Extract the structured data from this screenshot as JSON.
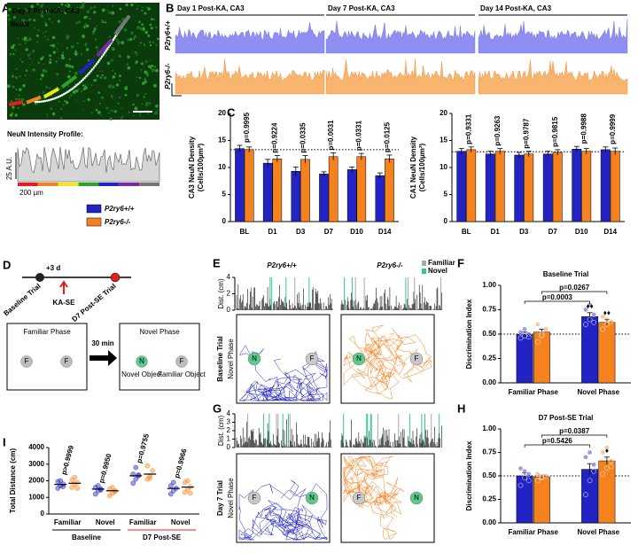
{
  "chart_data": [
    {
      "type": "bar",
      "ylabel": [
        "CA3 NeuN Density",
        "(Cells/100µm²)"
      ],
      "categories": [
        "BL",
        "D1",
        "D3",
        "D7",
        "D10",
        "D14"
      ],
      "category_colors": [
        "#000000",
        "#e0201f",
        "#e0201f",
        "#e0201f",
        "#e0201f",
        "#e0201f"
      ],
      "series": [
        {
          "name": "P2ry6+/+",
          "color": "#2323c4",
          "values": [
            13.5,
            10.8,
            9.3,
            8.8,
            9.6,
            8.5
          ],
          "errors": [
            0.6,
            0.7,
            0.8,
            0.4,
            0.5,
            0.5
          ]
        },
        {
          "name": "P2ry6-/-",
          "color": "#f5821f",
          "values": [
            13.3,
            11.6,
            11.5,
            12.0,
            12.0,
            11.6
          ],
          "errors": [
            0.5,
            0.6,
            0.7,
            0.7,
            0.6,
            0.7
          ]
        }
      ],
      "ylim": [
        0,
        20
      ],
      "yticks": [
        0,
        5,
        10,
        15,
        20
      ],
      "reference_line": 13.3,
      "p_values": [
        "p=0.9995",
        "p=0.9224",
        "p=0.0335",
        "p=0.0031",
        "p=0.0331",
        "p=0.0125"
      ]
    },
    {
      "type": "bar",
      "ylabel": [
        "CA1 NeuN Density",
        "(Cells/100µm²)"
      ],
      "categories": [
        "BL",
        "D1",
        "D3",
        "D7",
        "D10",
        "D14"
      ],
      "category_colors": [
        "#000000",
        "#e0201f",
        "#e0201f",
        "#e0201f",
        "#e0201f",
        "#e0201f"
      ],
      "series": [
        {
          "name": "P2ry6+/+",
          "color": "#2323c4",
          "values": [
            13.0,
            12.5,
            12.3,
            12.5,
            13.4,
            13.3
          ],
          "errors": [
            0.5,
            0.5,
            0.5,
            0.5,
            0.5,
            0.5
          ]
        },
        {
          "name": "P2ry6-/-",
          "color": "#f5821f",
          "values": [
            13.3,
            13.0,
            12.5,
            12.8,
            13.0,
            13.0
          ],
          "errors": [
            0.5,
            0.5,
            0.5,
            0.5,
            0.5,
            0.6
          ]
        }
      ],
      "ylim": [
        0,
        20
      ],
      "yticks": [
        0,
        5,
        10,
        15,
        20
      ],
      "reference_line": 12.9,
      "p_values": [
        "p=0.9331",
        "p=0.9263",
        "p=0.9787",
        "p=0.9815",
        "p=0.9988",
        "p=0.9999"
      ]
    },
    {
      "type": "bar",
      "title": "Baseline Trial",
      "title_color": "#000000",
      "ylabel": [
        "Discrimination Index"
      ],
      "categories": [
        "Familiar Phase",
        "Novel Phase"
      ],
      "series": [
        {
          "name": "P2ry6+/+",
          "color": "#2323c4",
          "values": [
            0.5,
            0.68
          ],
          "errors": [
            0.02,
            0.04
          ],
          "markers": [
            null,
            "♦♦"
          ],
          "points": [
            [
              0.46,
              0.48,
              0.5,
              0.52,
              0.55,
              0.47
            ],
            [
              0.6,
              0.65,
              0.7,
              0.75,
              0.8,
              0.62
            ]
          ]
        },
        {
          "name": "P2ry6-/-",
          "color": "#f5821f",
          "values": [
            0.52,
            0.62
          ],
          "errors": [
            0.03,
            0.03
          ],
          "markers": [
            null,
            "♦♦"
          ],
          "points": [
            [
              0.42,
              0.5,
              0.55,
              0.6,
              0.48
            ],
            [
              0.55,
              0.6,
              0.63,
              0.68,
              0.65
            ]
          ]
        }
      ],
      "ylim": [
        0,
        1
      ],
      "yticks": [
        {
          "value": 0,
          "label": "0.00"
        },
        {
          "value": 0.25,
          "label": "0.25"
        },
        {
          "value": 0.5,
          "label": "0.50"
        },
        {
          "value": 0.75,
          "label": "0.75"
        },
        {
          "value": 1,
          "label": "1.00"
        }
      ],
      "reference_line": 0.5,
      "comparisons": [
        "p=0.0267",
        "p=0.0003"
      ]
    },
    {
      "type": "bar",
      "title": "D7 Post-SE Trial",
      "title_color": "#e0201f",
      "ylabel": [
        "Discrimination Index"
      ],
      "categories": [
        "Familiar Phase",
        "Novel Phase"
      ],
      "series": [
        {
          "name": "P2ry6+/+",
          "color": "#2323c4",
          "values": [
            0.5,
            0.57
          ],
          "errors": [
            0.03,
            0.06
          ],
          "markers": [
            null,
            null
          ],
          "points": [
            [
              0.4,
              0.48,
              0.52,
              0.58,
              0.55,
              0.45
            ],
            [
              0.3,
              0.45,
              0.55,
              0.7,
              0.75,
              0.62
            ]
          ]
        },
        {
          "name": "P2ry6-/-",
          "color": "#f5821f",
          "values": [
            0.49,
            0.66
          ],
          "errors": [
            0.02,
            0.04
          ],
          "markers": [
            null,
            "♦"
          ],
          "points": [
            [
              0.45,
              0.48,
              0.5,
              0.52,
              0.49
            ],
            [
              0.52,
              0.58,
              0.66,
              0.75,
              0.8,
              0.6
            ]
          ]
        }
      ],
      "ylim": [
        0,
        1
      ],
      "yticks": [
        {
          "value": 0,
          "label": "0.00"
        },
        {
          "value": 0.25,
          "label": "0.25"
        },
        {
          "value": 0.5,
          "label": "0.50"
        },
        {
          "value": 0.75,
          "label": "0.75"
        },
        {
          "value": 1,
          "label": "1.00"
        }
      ],
      "reference_line": 0.5,
      "comparisons": [
        "p=0.0387",
        "p=0.5426"
      ]
    },
    {
      "type": "scatter",
      "ylabel": [
        "Total Distance (cm)"
      ],
      "categories": [
        "Familiar",
        "Novel",
        "Familiar",
        "Novel"
      ],
      "groups": [
        {
          "label": "Baseline",
          "color": "#000000"
        },
        {
          "label": "D7 Post-SE",
          "color": "#e0201f"
        }
      ],
      "series": [
        {
          "name": "P2ry6+/+",
          "color": "#2323c4",
          "values": [
            1780,
            1500,
            2300,
            1540
          ],
          "points": [
            [
              1550,
              1700,
              1800,
              1950,
              2000,
              1650
            ],
            [
              1200,
              1400,
              1500,
              1600,
              1700,
              1450
            ],
            [
              1850,
              2100,
              2300,
              2400,
              2800,
              2350
            ],
            [
              1200,
              1400,
              1550,
              1700,
              1900
            ]
          ]
        },
        {
          "name": "P2ry6-/-",
          "color": "#f5821f",
          "values": [
            1850,
            1400,
            2400,
            1620
          ],
          "points": [
            [
              1600,
              1800,
              1900,
              2050,
              2200,
              1550
            ],
            [
              1100,
              1250,
              1400,
              1500,
              1600,
              1350
            ],
            [
              2100,
              2300,
              2600,
              2900,
              2150
            ],
            [
              1300,
              1500,
              1650,
              1900,
              2000,
              1250
            ]
          ]
        }
      ],
      "ylim": [
        0,
        4000
      ],
      "yticks": [
        0,
        1000,
        2000,
        3000,
        4000
      ],
      "p_values": [
        "p>0.9999",
        "p=0.9950",
        "p=0.9755",
        "p=0.9966"
      ]
    }
  ],
  "panels": {
    "letters": [
      "A",
      "B",
      "C",
      "D",
      "E",
      "F",
      "G",
      "H",
      "I"
    ],
    "A": {
      "title": "Day 7 Post-KA, CA3",
      "stain": "NeuN",
      "profile_title": "NeuN Intensity Profile:",
      "scale_y": "25 A.U.",
      "scale_x": "200 µm"
    },
    "B": {
      "columns": [
        "Day 1 Post-KA, CA3",
        "Day 7 Post-KA, CA3",
        "Day 14 Post-KA, CA3"
      ],
      "rows": [
        "P2ry6+/+",
        "P2ry6-/-"
      ]
    },
    "D": {
      "interval": "+3 d",
      "baseline": "Baseline Trial",
      "injury": "KA-SE",
      "post": "D7 Post-SE Trial",
      "familiar_phase": "Familiar Phase",
      "delay": "30 min",
      "novel_phase": "Novel Phase",
      "familiar_objects": [
        "F",
        "F"
      ],
      "novel_objects": [
        "N",
        "F"
      ],
      "novel_caption": "Novel Object",
      "familiar_caption": "Familiar Object"
    },
    "E": {
      "genotypes": [
        "P2ry6+/+",
        "P2ry6-/-"
      ],
      "legend": [
        "Familiar",
        "Novel"
      ],
      "ylabel": "Dist. (cm)",
      "yticks": [
        0,
        2,
        4
      ],
      "row_label": [
        "Baseline Trial",
        "Novel Phase"
      ],
      "objects": [
        "N",
        "F",
        "N",
        "F"
      ]
    },
    "G": {
      "ylabel": "Dist. (cm)",
      "yticks": [
        0,
        1,
        2,
        3,
        4
      ],
      "row_label": [
        "Day 7 Trial",
        "Novel Phase"
      ],
      "objects": [
        "F",
        "N",
        "F",
        "N"
      ]
    }
  }
}
